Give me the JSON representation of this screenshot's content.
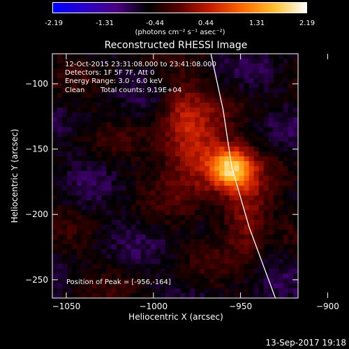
{
  "colorbar": {
    "ticks": [
      "-2.19",
      "-1.31",
      "-0.44",
      "0.44",
      "1.31",
      "2.19"
    ],
    "unit_label": "(photons cm⁻² s⁻¹ asec⁻²)",
    "colors": [
      "#0000ff",
      "#2a00c8",
      "#4b0082",
      "#000000",
      "#5a0000",
      "#c81e00",
      "#ff6a00",
      "#ffc030",
      "#ffffff"
    ]
  },
  "annotations": {
    "time_range": "12-Oct-2015 23:31:08.000 to 23:41:08.000",
    "detectors": "Detectors: 1F 5F 7F, Att 0",
    "energy": "Energy Range: 3.0 - 6.0 keV",
    "clean": "Clean",
    "counts": "Total counts: 9.19E+04",
    "peak": "Position of Peak = [-956,-164]"
  },
  "footer": {
    "timestamp": "13-Sep-2017 19:18"
  },
  "chart_data": {
    "type": "heatmap",
    "title": "Reconstructed RHESSI Image",
    "xlabel": "Heliocentric X (arcsec)",
    "ylabel": "Heliocentric Y (arcsec)",
    "xlim": [
      -1058,
      -917
    ],
    "ylim": [
      -264,
      -77
    ],
    "x_ticks": [
      -1050,
      -1000,
      -950,
      -900
    ],
    "y_ticks": [
      -250,
      -200,
      -150,
      -100
    ],
    "color_range": [
      -2.19,
      2.19
    ],
    "peak": {
      "x": -956,
      "y": -164,
      "value": 2.19
    },
    "sources": [
      {
        "x": -956,
        "y": -164,
        "sx": 9,
        "sy": 11,
        "amp": 2.1
      },
      {
        "x": -978,
        "y": -150,
        "sx": 12,
        "sy": 22,
        "amp": 1.2
      },
      {
        "x": -948,
        "y": -200,
        "sx": 10,
        "sy": 20,
        "amp": 1.0
      },
      {
        "x": -985,
        "y": -115,
        "sx": 9,
        "sy": 15,
        "amp": 0.5
      }
    ],
    "limb_curve": [
      [
        -967,
        -77
      ],
      [
        -960,
        -120
      ],
      [
        -955,
        -164
      ],
      [
        -945,
        -210
      ],
      [
        -930,
        -264
      ]
    ]
  }
}
